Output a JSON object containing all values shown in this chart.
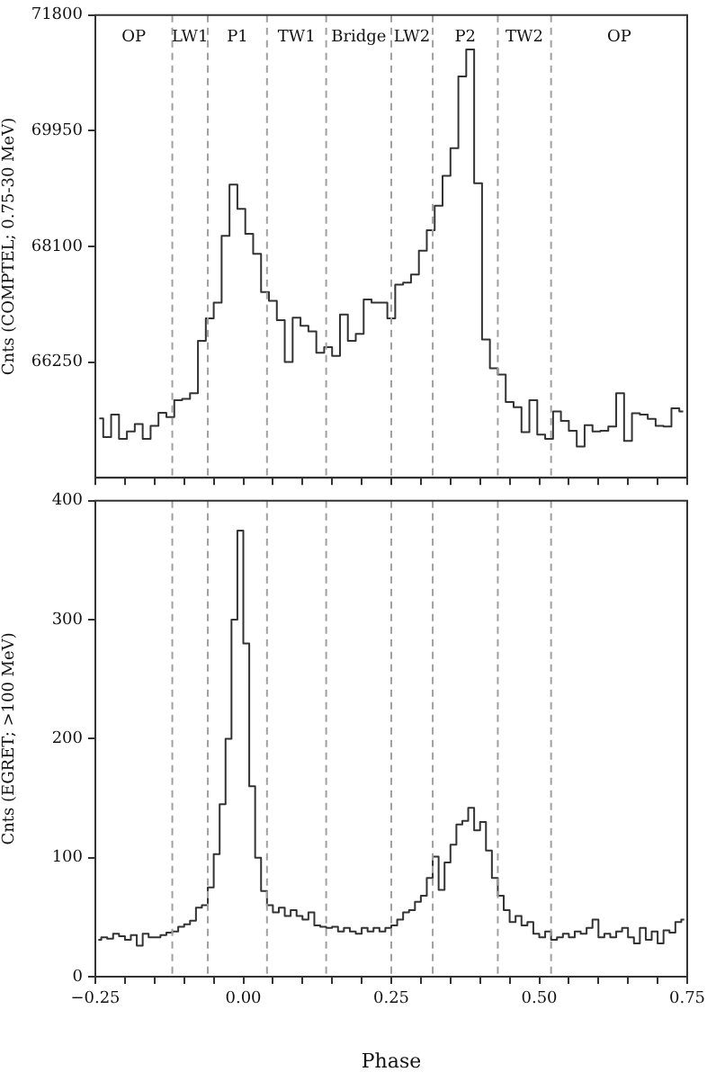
{
  "chart_data": [
    {
      "type": "step",
      "ylabel": "Cnts (COMPTEL; 0.75-30 MeV)",
      "color": "#333333",
      "x": [
        -0.2433,
        -0.23,
        -0.2167,
        -0.2033,
        -0.19,
        -0.1767,
        -0.1633,
        -0.15,
        -0.1367,
        -0.1233,
        -0.11,
        -0.0967,
        -0.0833,
        -0.07,
        -0.0567,
        -0.0433,
        -0.03,
        -0.0167,
        -0.0033,
        0.01,
        0.0233,
        0.0367,
        0.05,
        0.0633,
        0.0767,
        0.09,
        0.1033,
        0.1167,
        0.13,
        0.1433,
        0.1567,
        0.17,
        0.1833,
        0.1967,
        0.21,
        0.2233,
        0.2367,
        0.25,
        0.2633,
        0.2767,
        0.29,
        0.3033,
        0.3167,
        0.33,
        0.3433,
        0.3567,
        0.37,
        0.3833,
        0.3967,
        0.41,
        0.4233,
        0.4367,
        0.45,
        0.4633,
        0.4767,
        0.49,
        0.5033,
        0.5167,
        0.53,
        0.5433,
        0.5567,
        0.57,
        0.5833,
        0.5967,
        0.61,
        0.6233,
        0.6367,
        0.65,
        0.6633,
        0.6767,
        0.69,
        0.7033,
        0.7167,
        0.73,
        0.7433
      ],
      "values": [
        65350,
        65050,
        65410,
        65020,
        65140,
        65260,
        65020,
        65230,
        65440,
        65370,
        65640,
        65660,
        65750,
        66590,
        66950,
        67200,
        68270,
        69090,
        68700,
        68300,
        67980,
        67370,
        67230,
        66920,
        66250,
        66960,
        66830,
        66740,
        66400,
        66490,
        66350,
        67010,
        66590,
        66700,
        67250,
        67200,
        67200,
        66950,
        67490,
        67520,
        67650,
        68030,
        68360,
        68750,
        69230,
        69670,
        70820,
        71250,
        69110,
        66610,
        66150,
        66050,
        65610,
        65530,
        65130,
        65640,
        65090,
        65020,
        65460,
        65310,
        65150,
        64900,
        65240,
        65140,
        65150,
        65220,
        65750,
        64990,
        65430,
        65410,
        65340,
        65230,
        65220,
        65510,
        65460
      ],
      "xlim": [
        -0.25,
        0.75
      ],
      "xticks": [
        {
          "value": -0.25,
          "label": null
        },
        {
          "value": -0.2,
          "label": null
        },
        {
          "value": -0.15,
          "label": null
        },
        {
          "value": -0.1,
          "label": null
        },
        {
          "value": -0.05,
          "label": null
        },
        {
          "value": 0,
          "label": null
        },
        {
          "value": 0.05,
          "label": null
        },
        {
          "value": 0.1,
          "label": null
        },
        {
          "value": 0.15,
          "label": null
        },
        {
          "value": 0.2,
          "label": null
        },
        {
          "value": 0.25,
          "label": null
        },
        {
          "value": 0.3,
          "label": null
        },
        {
          "value": 0.35,
          "label": null
        },
        {
          "value": 0.4,
          "label": null
        },
        {
          "value": 0.45,
          "label": null
        },
        {
          "value": 0.5,
          "label": null
        },
        {
          "value": 0.55,
          "label": null
        },
        {
          "value": 0.6,
          "label": null
        },
        {
          "value": 0.65,
          "label": null
        },
        {
          "value": 0.7,
          "label": null
        },
        {
          "value": 0.75,
          "label": null
        }
      ],
      "ylim": [
        64400,
        71800
      ],
      "yticks": [
        66250,
        68100,
        69950,
        71800
      ],
      "tick_labels": "y",
      "ref_lines": [
        {
          "axis": "x",
          "value": -0.12,
          "color": "#a0a0a0",
          "line_style": "dashed"
        },
        {
          "axis": "x",
          "value": -0.06,
          "color": "#a0a0a0",
          "line_style": "dashed"
        },
        {
          "axis": "x",
          "value": 0.04,
          "color": "#a0a0a0",
          "line_style": "dashed"
        },
        {
          "axis": "x",
          "value": 0.14,
          "color": "#a0a0a0",
          "line_style": "dashed"
        },
        {
          "axis": "x",
          "value": 0.25,
          "color": "#a0a0a0",
          "line_style": "dashed"
        },
        {
          "axis": "x",
          "value": 0.32,
          "color": "#a0a0a0",
          "line_style": "dashed"
        },
        {
          "axis": "x",
          "value": 0.43,
          "color": "#a0a0a0",
          "line_style": "dashed"
        },
        {
          "axis": "x",
          "value": 0.52,
          "color": "#a0a0a0",
          "line_style": "dashed"
        }
      ],
      "annotations": [
        "OP",
        "LW1",
        "P1",
        "TW1",
        "Bridge",
        "LW2",
        "P2",
        "TW2",
        "OP"
      ]
    },
    {
      "type": "step",
      "ylabel": "Cnts (EGRET; >100 MeV)",
      "xlabel": "Phase",
      "color": "#333333",
      "x": [
        -0.245,
        -0.235,
        -0.225,
        -0.215,
        -0.205,
        -0.195,
        -0.185,
        -0.175,
        -0.165,
        -0.155,
        -0.145,
        -0.135,
        -0.125,
        -0.115,
        -0.105,
        -0.095,
        -0.085,
        -0.075,
        -0.065,
        -0.055,
        -0.045,
        -0.035,
        -0.025,
        -0.015,
        -0.005,
        0.005,
        0.015,
        0.025,
        0.035,
        0.045,
        0.055,
        0.065,
        0.075,
        0.085,
        0.095,
        0.105,
        0.115,
        0.125,
        0.135,
        0.145,
        0.155,
        0.165,
        0.175,
        0.185,
        0.195,
        0.205,
        0.215,
        0.225,
        0.235,
        0.245,
        0.255,
        0.265,
        0.275,
        0.285,
        0.295,
        0.305,
        0.315,
        0.325,
        0.335,
        0.345,
        0.355,
        0.365,
        0.375,
        0.385,
        0.395,
        0.405,
        0.415,
        0.425,
        0.435,
        0.445,
        0.455,
        0.465,
        0.475,
        0.485,
        0.495,
        0.505,
        0.515,
        0.525,
        0.535,
        0.545,
        0.555,
        0.565,
        0.575,
        0.585,
        0.595,
        0.605,
        0.615,
        0.625,
        0.635,
        0.645,
        0.655,
        0.665,
        0.675,
        0.685,
        0.695,
        0.705,
        0.715,
        0.725,
        0.735,
        0.745
      ],
      "values": [
        31,
        33,
        32,
        36,
        34,
        31,
        35,
        26,
        36,
        33,
        33,
        35,
        37,
        38,
        42,
        44,
        47,
        58,
        60,
        75,
        103,
        145,
        200,
        300,
        375,
        280,
        160,
        100,
        72,
        60,
        54,
        58,
        51,
        56,
        51,
        48,
        54,
        43,
        42,
        41,
        42,
        38,
        41,
        38,
        36,
        41,
        38,
        41,
        38,
        41,
        43,
        48,
        54,
        56,
        63,
        68,
        83,
        101,
        73,
        96,
        111,
        128,
        131,
        142,
        123,
        130,
        106,
        83,
        68,
        56,
        46,
        51,
        43,
        46,
        36,
        33,
        38,
        31,
        33,
        36,
        33,
        38,
        36,
        41,
        48,
        33,
        36,
        33,
        38,
        41,
        33,
        28,
        41,
        31,
        38,
        28,
        39,
        37,
        46,
        48
      ],
      "xlim": [
        -0.25,
        0.75
      ],
      "xticks": [
        {
          "value": -0.25,
          "label": "−0.25"
        },
        {
          "value": -0.2,
          "label": null
        },
        {
          "value": -0.15,
          "label": null
        },
        {
          "value": -0.1,
          "label": null
        },
        {
          "value": -0.05,
          "label": null
        },
        {
          "value": 0,
          "label": "0.00"
        },
        {
          "value": 0.05,
          "label": null
        },
        {
          "value": 0.1,
          "label": null
        },
        {
          "value": 0.15,
          "label": null
        },
        {
          "value": 0.2,
          "label": null
        },
        {
          "value": 0.25,
          "label": "0.25"
        },
        {
          "value": 0.3,
          "label": null
        },
        {
          "value": 0.35,
          "label": null
        },
        {
          "value": 0.4,
          "label": null
        },
        {
          "value": 0.45,
          "label": null
        },
        {
          "value": 0.5,
          "label": "0.50"
        },
        {
          "value": 0.55,
          "label": null
        },
        {
          "value": 0.6,
          "label": null
        },
        {
          "value": 0.65,
          "label": null
        },
        {
          "value": 0.7,
          "label": null
        },
        {
          "value": 0.75,
          "label": "0.75"
        }
      ],
      "ylim": [
        0,
        400
      ],
      "yticks": [
        0,
        100,
        200,
        300,
        400
      ],
      "ref_lines": [
        {
          "axis": "x",
          "value": -0.12,
          "color": "#a0a0a0",
          "line_style": "dashed"
        },
        {
          "axis": "x",
          "value": -0.06,
          "color": "#a0a0a0",
          "line_style": "dashed"
        },
        {
          "axis": "x",
          "value": 0.04,
          "color": "#a0a0a0",
          "line_style": "dashed"
        },
        {
          "axis": "x",
          "value": 0.14,
          "color": "#a0a0a0",
          "line_style": "dashed"
        },
        {
          "axis": "x",
          "value": 0.25,
          "color": "#a0a0a0",
          "line_style": "dashed"
        },
        {
          "axis": "x",
          "value": 0.32,
          "color": "#a0a0a0",
          "line_style": "dashed"
        },
        {
          "axis": "x",
          "value": 0.43,
          "color": "#a0a0a0",
          "line_style": "dashed"
        },
        {
          "axis": "x",
          "value": 0.52,
          "color": "#a0a0a0",
          "line_style": "dashed"
        }
      ]
    }
  ]
}
